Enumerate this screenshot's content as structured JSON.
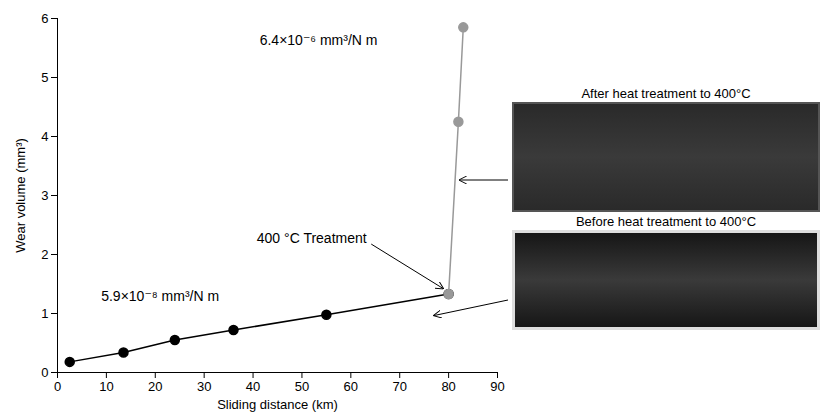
{
  "chart_data": {
    "type": "line",
    "x_label": "Sliding distance (km)",
    "y_label": "Wear volume (mm³)",
    "xlim": [
      0,
      90
    ],
    "xticks": [
      0,
      10,
      20,
      30,
      40,
      50,
      60,
      70,
      80,
      90
    ],
    "ylim": [
      0,
      6
    ],
    "yticks": [
      0,
      1,
      2,
      3,
      4,
      5,
      6
    ],
    "grid": false,
    "marker": "circle",
    "series": [
      {
        "color": "#000000",
        "x": [
          2.5,
          13.5,
          24,
          36,
          55,
          80
        ],
        "values": [
          0.18,
          0.34,
          0.55,
          0.72,
          0.98,
          1.33
        ]
      },
      {
        "color": "#999999",
        "x": [
          80,
          82,
          83
        ],
        "values": [
          1.33,
          4.25,
          5.85
        ]
      }
    ],
    "annotations": [
      {
        "text": "5.9×10⁻⁸ mm³/N m",
        "x": 21,
        "y": 1.29
      },
      {
        "text": "6.4×10⁻⁶ mm³/N m",
        "x": 53.4,
        "y": 5.63
      },
      {
        "text": "400 °C Treatment",
        "x": 52,
        "y": 2.27,
        "point_to": {
          "x": 80,
          "y": 1.33
        }
      }
    ],
    "images": [
      {
        "title": "After heat treatment to 400°C"
      },
      {
        "title": "Before heat treatment to 400°C"
      }
    ]
  }
}
